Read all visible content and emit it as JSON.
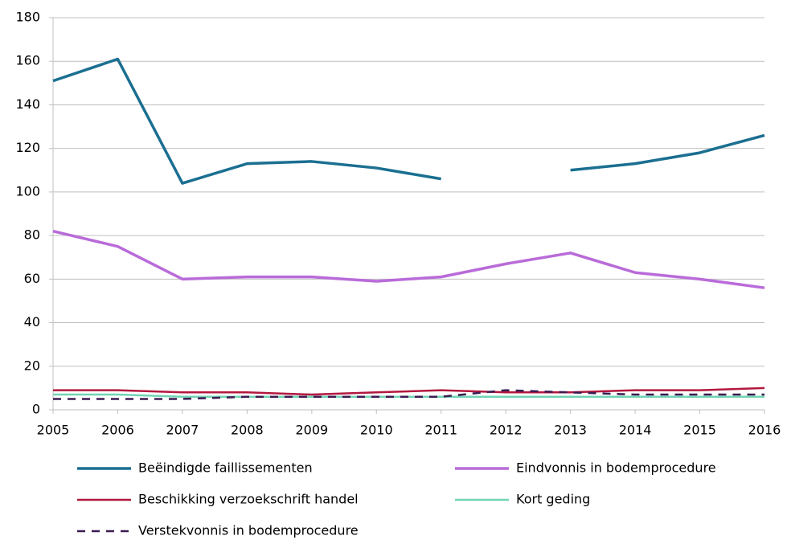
{
  "chart_data": {
    "type": "line",
    "x": [
      2005,
      2006,
      2007,
      2008,
      2009,
      2010,
      2011,
      2012,
      2013,
      2014,
      2015,
      2016
    ],
    "xlim": [
      2005,
      2016
    ],
    "xticks": [
      2005,
      2006,
      2007,
      2008,
      2009,
      2010,
      2011,
      2012,
      2013,
      2014,
      2015,
      2016
    ],
    "ylim": [
      0,
      180
    ],
    "yticks": [
      0,
      20,
      40,
      60,
      80,
      100,
      120,
      140,
      160,
      180
    ],
    "grid": true,
    "legend": "bottom",
    "series": [
      {
        "name": "Beëindigde faillissementen",
        "color": "#1b6f91",
        "values": [
          151,
          161,
          104,
          113,
          114,
          111,
          106,
          null,
          110,
          113,
          118,
          126
        ]
      },
      {
        "name": "Eindvonnis in bodemprocedure",
        "color": "#b96bd9",
        "values": [
          82,
          75,
          60,
          61,
          61,
          59,
          61,
          67,
          72,
          63,
          60,
          56
        ]
      },
      {
        "name": "Beschikking verzoekschrift handel",
        "color": "#b2183f",
        "values": [
          9,
          9,
          8,
          8,
          7,
          8,
          9,
          8,
          8,
          9,
          9,
          10
        ]
      },
      {
        "name": "Kort geding",
        "color": "#72d4b4",
        "values": [
          7,
          7,
          6,
          6,
          6,
          6,
          6,
          6,
          6,
          6,
          6,
          6
        ]
      },
      {
        "name": "Verstekvonnis in bodemprocedure",
        "color": "#3c1b52",
        "dashed": true,
        "values": [
          5,
          5,
          5,
          6,
          6,
          6,
          6,
          9,
          8,
          7,
          7,
          7
        ]
      }
    ]
  }
}
